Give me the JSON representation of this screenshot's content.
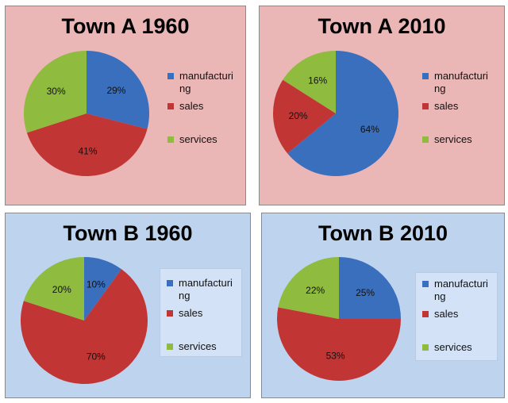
{
  "colors": {
    "manufacturing": "#3a6fbe",
    "sales": "#c23535",
    "services": "#8fbb3e"
  },
  "chart_data": [
    {
      "type": "pie",
      "title": "Town A 1960",
      "labels": [
        "manufacturing",
        "sales",
        "services"
      ],
      "values": [
        29,
        41,
        30
      ],
      "value_labels": [
        "29%",
        "41%",
        "30%"
      ],
      "legend_position": "right"
    },
    {
      "type": "pie",
      "title": "Town A 2010",
      "labels": [
        "manufacturing",
        "sales",
        "services"
      ],
      "values": [
        64,
        20,
        16
      ],
      "value_labels": [
        "64%",
        "20%",
        "16%"
      ],
      "legend_position": "right"
    },
    {
      "type": "pie",
      "title": "Town B 1960",
      "labels": [
        "manufacturing",
        "sales",
        "services"
      ],
      "values": [
        10,
        70,
        20
      ],
      "value_labels": [
        "10%",
        "70%",
        "20%"
      ],
      "legend_position": "right"
    },
    {
      "type": "pie",
      "title": "Town B 2010",
      "labels": [
        "manufacturing",
        "sales",
        "services"
      ],
      "values": [
        25,
        53,
        22
      ],
      "value_labels": [
        "25%",
        "53%",
        "22%"
      ],
      "legend_position": "right"
    }
  ]
}
